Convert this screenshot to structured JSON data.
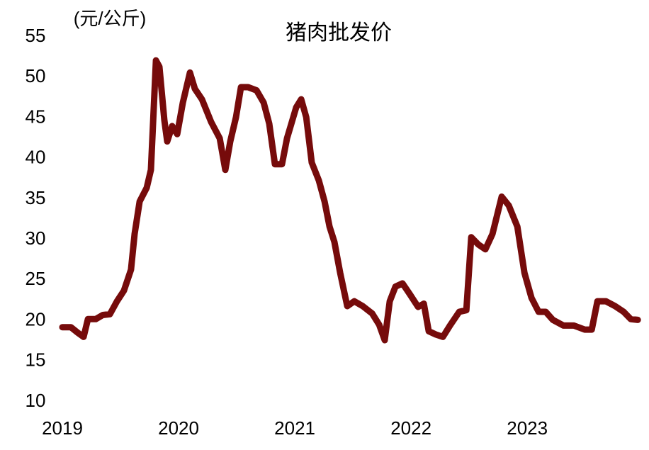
{
  "chart_data": {
    "type": "line",
    "title": "猪肉批发价",
    "y_label": "(元/公斤)",
    "color": "#760b0b",
    "x": [
      2019.0,
      2019.073,
      2019.134,
      2019.183,
      2019.22,
      2019.287,
      2019.348,
      2019.409,
      2019.47,
      2019.53,
      2019.591,
      2019.622,
      2019.665,
      2019.726,
      2019.762,
      2019.805,
      2019.835,
      2019.878,
      2019.902,
      2019.945,
      2019.988,
      2020.037,
      2020.098,
      2020.14,
      2020.201,
      2020.28,
      2020.354,
      2020.402,
      2020.445,
      2020.494,
      2020.537,
      2020.598,
      2020.671,
      2020.732,
      2020.78,
      2020.829,
      2020.89,
      2020.933,
      2021.012,
      2021.055,
      2021.098,
      2021.146,
      2021.207,
      2021.256,
      2021.299,
      2021.341,
      2021.39,
      2021.451,
      2021.512,
      2021.585,
      2021.665,
      2021.726,
      2021.774,
      2021.817,
      2021.866,
      2021.927,
      2021.988,
      2022.061,
      2022.11,
      2022.152,
      2022.213,
      2022.274,
      2022.335,
      2022.415,
      2022.476,
      2022.518,
      2022.579,
      2022.64,
      2022.701,
      2022.78,
      2022.841,
      2022.915,
      2022.976,
      2023.037,
      2023.098,
      2023.159,
      2023.22,
      2023.311,
      2023.402,
      2023.494,
      2023.555,
      2023.604,
      2023.677,
      2023.756,
      2023.829,
      2023.89,
      2023.951
    ],
    "values": [
      19.2,
      19.2,
      18.5,
      18.0,
      20.2,
      20.2,
      20.7,
      20.8,
      22.4,
      23.7,
      26.3,
      30.7,
      34.7,
      36.4,
      38.6,
      52.1,
      51.3,
      44.7,
      42.1,
      44.0,
      43.0,
      46.9,
      50.6,
      48.6,
      47.3,
      44.5,
      42.5,
      38.6,
      42.1,
      45.1,
      48.8,
      48.8,
      48.4,
      46.9,
      44.3,
      39.3,
      39.3,
      42.5,
      46.3,
      47.3,
      45.1,
      39.5,
      37.3,
      34.7,
      31.6,
      29.7,
      25.9,
      21.8,
      22.4,
      21.8,
      20.9,
      19.5,
      17.6,
      22.4,
      24.2,
      24.6,
      23.3,
      21.7,
      22.1,
      18.7,
      18.3,
      18.0,
      19.4,
      21.1,
      21.3,
      30.3,
      29.4,
      28.8,
      30.7,
      35.3,
      34.2,
      31.6,
      25.9,
      22.8,
      21.1,
      21.1,
      20.1,
      19.4,
      19.4,
      18.9,
      18.9,
      22.4,
      22.4,
      21.8,
      21.1,
      20.2,
      20.1
    ],
    "xlim": [
      2019,
      2023.95
    ],
    "xticks": [
      2019,
      2020,
      2021,
      2022,
      2023
    ],
    "ylim": [
      10,
      55
    ],
    "yticks": [
      10,
      15,
      20,
      25,
      30,
      35,
      40,
      45,
      50,
      55
    ]
  }
}
